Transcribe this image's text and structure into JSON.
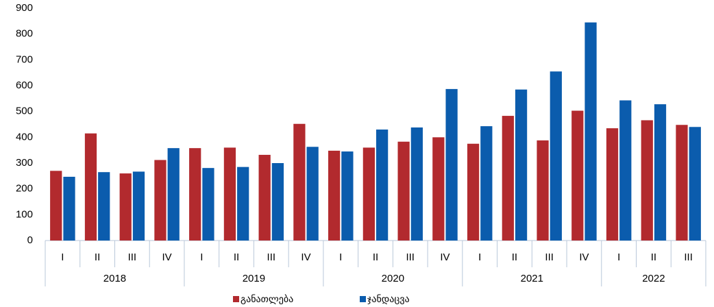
{
  "chart_data": {
    "type": "bar",
    "category_groups": [
      {
        "label": "2018",
        "categories": [
          "I",
          "II",
          "III",
          "IV"
        ]
      },
      {
        "label": "2019",
        "categories": [
          "I",
          "II",
          "III",
          "IV"
        ]
      },
      {
        "label": "2020",
        "categories": [
          "I",
          "II",
          "III",
          "IV"
        ]
      },
      {
        "label": "2021",
        "categories": [
          "I",
          "II",
          "III",
          "IV"
        ]
      },
      {
        "label": "2022",
        "categories": [
          "I",
          "II",
          "III"
        ]
      }
    ],
    "series": [
      {
        "name": "განათლება",
        "color": "#b22a2e",
        "values": [
          270,
          415,
          260,
          312,
          358,
          360,
          332,
          452,
          348,
          360,
          383,
          400,
          375,
          483,
          388,
          503,
          435,
          466,
          448
        ]
      },
      {
        "name": "ჯანდაცვა",
        "color": "#0b5cad",
        "values": [
          247,
          265,
          267,
          358,
          281,
          285,
          300,
          363,
          345,
          430,
          438,
          587,
          443,
          585,
          655,
          845,
          543,
          528,
          440
        ]
      }
    ],
    "ylim": [
      0,
      900
    ],
    "yticks": [
      0,
      100,
      200,
      300,
      400,
      500,
      600,
      700,
      800,
      900
    ],
    "grid": false
  }
}
